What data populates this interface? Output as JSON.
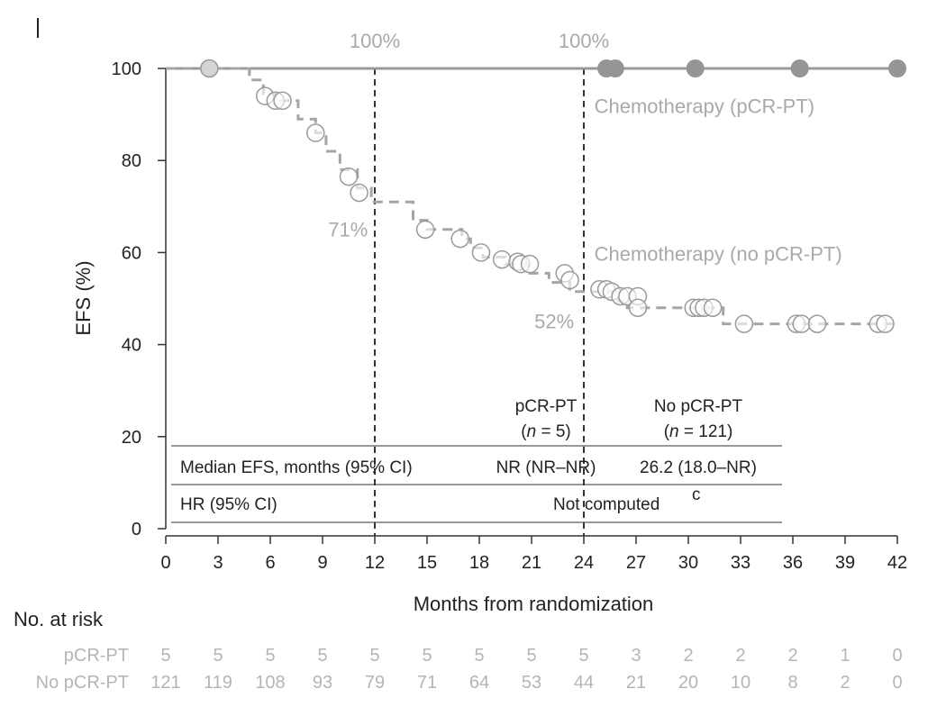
{
  "chart_data": {
    "type": "line",
    "subtype": "kaplan-meier",
    "corner_mark": "|",
    "xlabel": "Months from randomization",
    "ylabel": "EFS (%)",
    "xlim": [
      0,
      42
    ],
    "ylim": [
      0,
      100
    ],
    "xticks": [
      0,
      3,
      6,
      9,
      12,
      15,
      18,
      21,
      24,
      27,
      30,
      33,
      36,
      39,
      42
    ],
    "yticks": [
      0,
      20,
      40,
      60,
      80,
      100
    ],
    "reference_lines_x": [
      12,
      24
    ],
    "series": [
      {
        "name": "Chemotherapy (pCR-PT)",
        "color": "#9a9a9a",
        "style": "solid",
        "steps": [
          [
            0,
            100
          ],
          [
            42,
            100
          ]
        ],
        "censor_marker": "filled",
        "censored": [
          [
            2.5,
            100
          ],
          [
            25.3,
            100
          ],
          [
            25.8,
            100
          ],
          [
            30.4,
            100
          ],
          [
            36.4,
            100
          ],
          [
            42,
            100
          ]
        ]
      },
      {
        "name": "Chemotherapy (no pCR-PT)",
        "color": "#a5a5a5",
        "style": "dashed",
        "censor_marker": "open",
        "steps": [
          [
            0,
            100
          ],
          [
            4.8,
            100
          ],
          [
            4.8,
            97.5
          ],
          [
            5.6,
            97.5
          ],
          [
            5.6,
            94.5
          ],
          [
            6.3,
            94.5
          ],
          [
            6.3,
            93
          ],
          [
            7.6,
            93
          ],
          [
            7.6,
            89
          ],
          [
            8.6,
            89
          ],
          [
            8.6,
            86
          ],
          [
            9.2,
            86
          ],
          [
            9.2,
            82
          ],
          [
            10.0,
            82
          ],
          [
            10.0,
            78
          ],
          [
            11.0,
            78
          ],
          [
            11.0,
            74
          ],
          [
            11.8,
            74
          ],
          [
            11.8,
            71
          ],
          [
            14.2,
            71
          ],
          [
            14.2,
            67
          ],
          [
            15.0,
            67
          ],
          [
            15.0,
            65
          ],
          [
            17.0,
            65
          ],
          [
            17.0,
            63
          ],
          [
            17.5,
            63
          ],
          [
            17.5,
            61
          ],
          [
            18.2,
            61
          ],
          [
            18.2,
            59
          ],
          [
            19.5,
            59
          ],
          [
            19.5,
            57.5
          ],
          [
            20.8,
            57.5
          ],
          [
            20.8,
            55.5
          ],
          [
            22.0,
            55.5
          ],
          [
            22.0,
            53.5
          ],
          [
            23.2,
            53.5
          ],
          [
            23.2,
            51.5
          ],
          [
            26.0,
            51.5
          ],
          [
            26.0,
            49.5
          ],
          [
            26.5,
            49.5
          ],
          [
            26.5,
            48
          ],
          [
            29.5,
            48
          ],
          [
            29.5,
            48
          ],
          [
            32.0,
            48
          ],
          [
            32.0,
            44.5
          ],
          [
            42,
            44.5
          ]
        ],
        "censored": [
          [
            2.5,
            100
          ],
          [
            5.7,
            94
          ],
          [
            6.3,
            93
          ],
          [
            6.7,
            93
          ],
          [
            8.6,
            86
          ],
          [
            10.5,
            76.5
          ],
          [
            11.1,
            73
          ],
          [
            14.9,
            65
          ],
          [
            16.9,
            63
          ],
          [
            18.1,
            60
          ],
          [
            19.3,
            58.5
          ],
          [
            20.2,
            58
          ],
          [
            20.4,
            57.5
          ],
          [
            20.9,
            57.5
          ],
          [
            22.9,
            55.5
          ],
          [
            23.2,
            54
          ],
          [
            24.9,
            52
          ],
          [
            25.3,
            52
          ],
          [
            25.6,
            51.5
          ],
          [
            26.1,
            50.5
          ],
          [
            26.5,
            50.5
          ],
          [
            27.1,
            50.5
          ],
          [
            27.1,
            48
          ],
          [
            30.3,
            48
          ],
          [
            30.6,
            48
          ],
          [
            30.9,
            48
          ],
          [
            31.4,
            48
          ],
          [
            33.2,
            44.5
          ],
          [
            36.2,
            44.5
          ],
          [
            36.5,
            44.5
          ],
          [
            37.4,
            44.5
          ],
          [
            40.9,
            44.5
          ],
          [
            41.3,
            44.5
          ]
        ]
      }
    ],
    "annotations": [
      {
        "text": "100%",
        "x": 12,
        "y": 104.5,
        "anchor": "middle"
      },
      {
        "text": "100%",
        "x": 24,
        "y": 104.5,
        "anchor": "middle"
      },
      {
        "text": "71%",
        "x": 11.6,
        "y": 63.5,
        "anchor": "end"
      },
      {
        "text": "52%",
        "x": 22.3,
        "y": 43.5,
        "anchor": "middle"
      },
      {
        "text": "Chemotherapy (pCR-PT)",
        "x": 24.6,
        "y": 90.3,
        "anchor": "start"
      },
      {
        "text": "Chemotherapy (no pCR-PT)",
        "x": 24.6,
        "y": 58.2,
        "anchor": "start"
      }
    ],
    "table": {
      "col_headers": [
        {
          "line1": "pCR-PT",
          "line2_italic": "n",
          "line2_rest": " = 5)"
        },
        {
          "line1": "No pCR-PT",
          "line2_italic": "n",
          "line2_rest": " = 121)"
        }
      ],
      "rows": [
        {
          "label": "Median EFS, months (95% CI)",
          "values": [
            "NR (NR–NR)",
            "26.2 (18.0–NR)"
          ]
        },
        {
          "label": "HR (95% CI)",
          "merged_value": "Not computed",
          "superscript": "c"
        }
      ]
    },
    "risk_table": {
      "title": "No. at risk",
      "rows": [
        {
          "label": "pCR-PT",
          "values": [
            5,
            5,
            5,
            5,
            5,
            5,
            5,
            5,
            5,
            3,
            2,
            2,
            2,
            1,
            0
          ]
        },
        {
          "label": "No pCR-PT",
          "values": [
            121,
            119,
            108,
            93,
            79,
            71,
            64,
            53,
            44,
            21,
            20,
            10,
            8,
            2,
            0
          ]
        }
      ]
    }
  }
}
